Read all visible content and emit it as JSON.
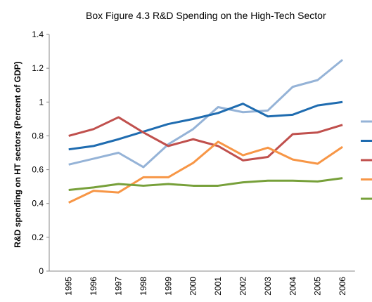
{
  "chart_data": {
    "type": "line",
    "title": "Box Figure 4.3 R&D Spending on the High-Tech Sector",
    "y_label": "R&D spending on HT sectors (Percent of GDP)",
    "categories": [
      "1995",
      "1996",
      "1997",
      "1998",
      "1999",
      "2000",
      "2001",
      "2002",
      "2003",
      "2004",
      "2005",
      "2006"
    ],
    "series": [
      {
        "color": "#95b3d7",
        "values": [
          0.63,
          0.665,
          0.7,
          0.615,
          0.75,
          0.84,
          0.97,
          0.94,
          0.95,
          1.09,
          1.13,
          1.25
        ]
      },
      {
        "color": "#1f6cb0",
        "values": [
          0.72,
          0.74,
          0.78,
          0.825,
          0.87,
          0.9,
          0.935,
          0.99,
          0.915,
          0.925,
          0.98,
          1.0
        ]
      },
      {
        "color": "#c0504d",
        "values": [
          0.8,
          0.84,
          0.91,
          0.82,
          0.74,
          0.78,
          0.74,
          0.655,
          0.675,
          0.81,
          0.82,
          0.865
        ]
      },
      {
        "color": "#f79646",
        "values": [
          0.405,
          0.475,
          0.465,
          0.555,
          0.555,
          0.64,
          0.765,
          0.685,
          0.73,
          0.66,
          0.635,
          0.735
        ]
      },
      {
        "color": "#77a03a",
        "values": [
          0.48,
          0.495,
          0.515,
          0.505,
          0.515,
          0.505,
          0.505,
          0.525,
          0.535,
          0.535,
          0.53,
          0.55
        ]
      }
    ],
    "ylim": [
      0,
      1.4
    ],
    "yticks": [
      0,
      0.2,
      0.4,
      0.6,
      0.8,
      1,
      1.2,
      1.4
    ],
    "grid": false,
    "legend": "right"
  }
}
